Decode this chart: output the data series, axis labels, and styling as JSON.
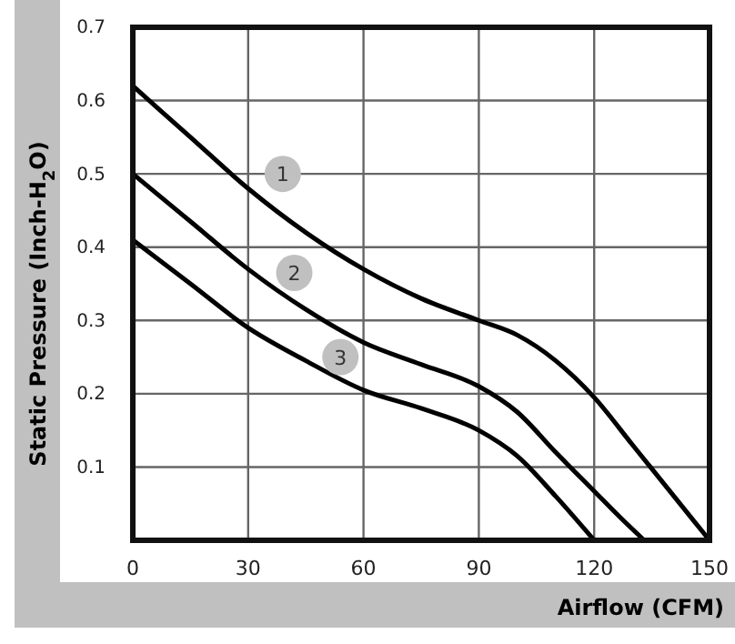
{
  "chart_data": {
    "type": "line",
    "xlabel": "Airflow (CFM)",
    "ylabel": "Static Pressure (Inch-H$_{2}$O)",
    "xlim": [
      0,
      150
    ],
    "ylim": [
      0,
      0.7
    ],
    "xticks": [
      0,
      30,
      60,
      90,
      120,
      150
    ],
    "yticks": [
      0.1,
      0.2,
      0.3,
      0.4,
      0.5,
      0.6,
      0.7
    ],
    "grid": true,
    "line_style": "solid",
    "marker": "none",
    "series": [
      {
        "color": "#000000",
        "x": [
          0,
          15,
          30,
          45,
          60,
          75,
          90,
          100,
          110,
          120,
          130,
          140,
          150
        ],
        "values": [
          0.62,
          0.55,
          0.48,
          0.42,
          0.37,
          0.33,
          0.3,
          0.28,
          0.245,
          0.195,
          0.13,
          0.065,
          0
        ]
      },
      {
        "color": "#000000",
        "x": [
          0,
          15,
          30,
          45,
          60,
          75,
          90,
          100,
          110,
          120,
          127,
          133
        ],
        "values": [
          0.5,
          0.435,
          0.37,
          0.315,
          0.27,
          0.24,
          0.21,
          0.175,
          0.12,
          0.067,
          0.03,
          0
        ]
      },
      {
        "color": "#000000",
        "x": [
          0,
          15,
          30,
          45,
          60,
          75,
          90,
          100,
          110,
          120
        ],
        "values": [
          0.41,
          0.35,
          0.29,
          0.245,
          0.205,
          0.18,
          0.15,
          0.115,
          0.06,
          0
        ]
      }
    ],
    "annotations": [
      {
        "text": "1",
        "x": 39,
        "y": 0.5
      },
      {
        "text": "2",
        "x": 42,
        "y": 0.365
      },
      {
        "text": "3",
        "x": 54,
        "y": 0.25
      }
    ]
  }
}
